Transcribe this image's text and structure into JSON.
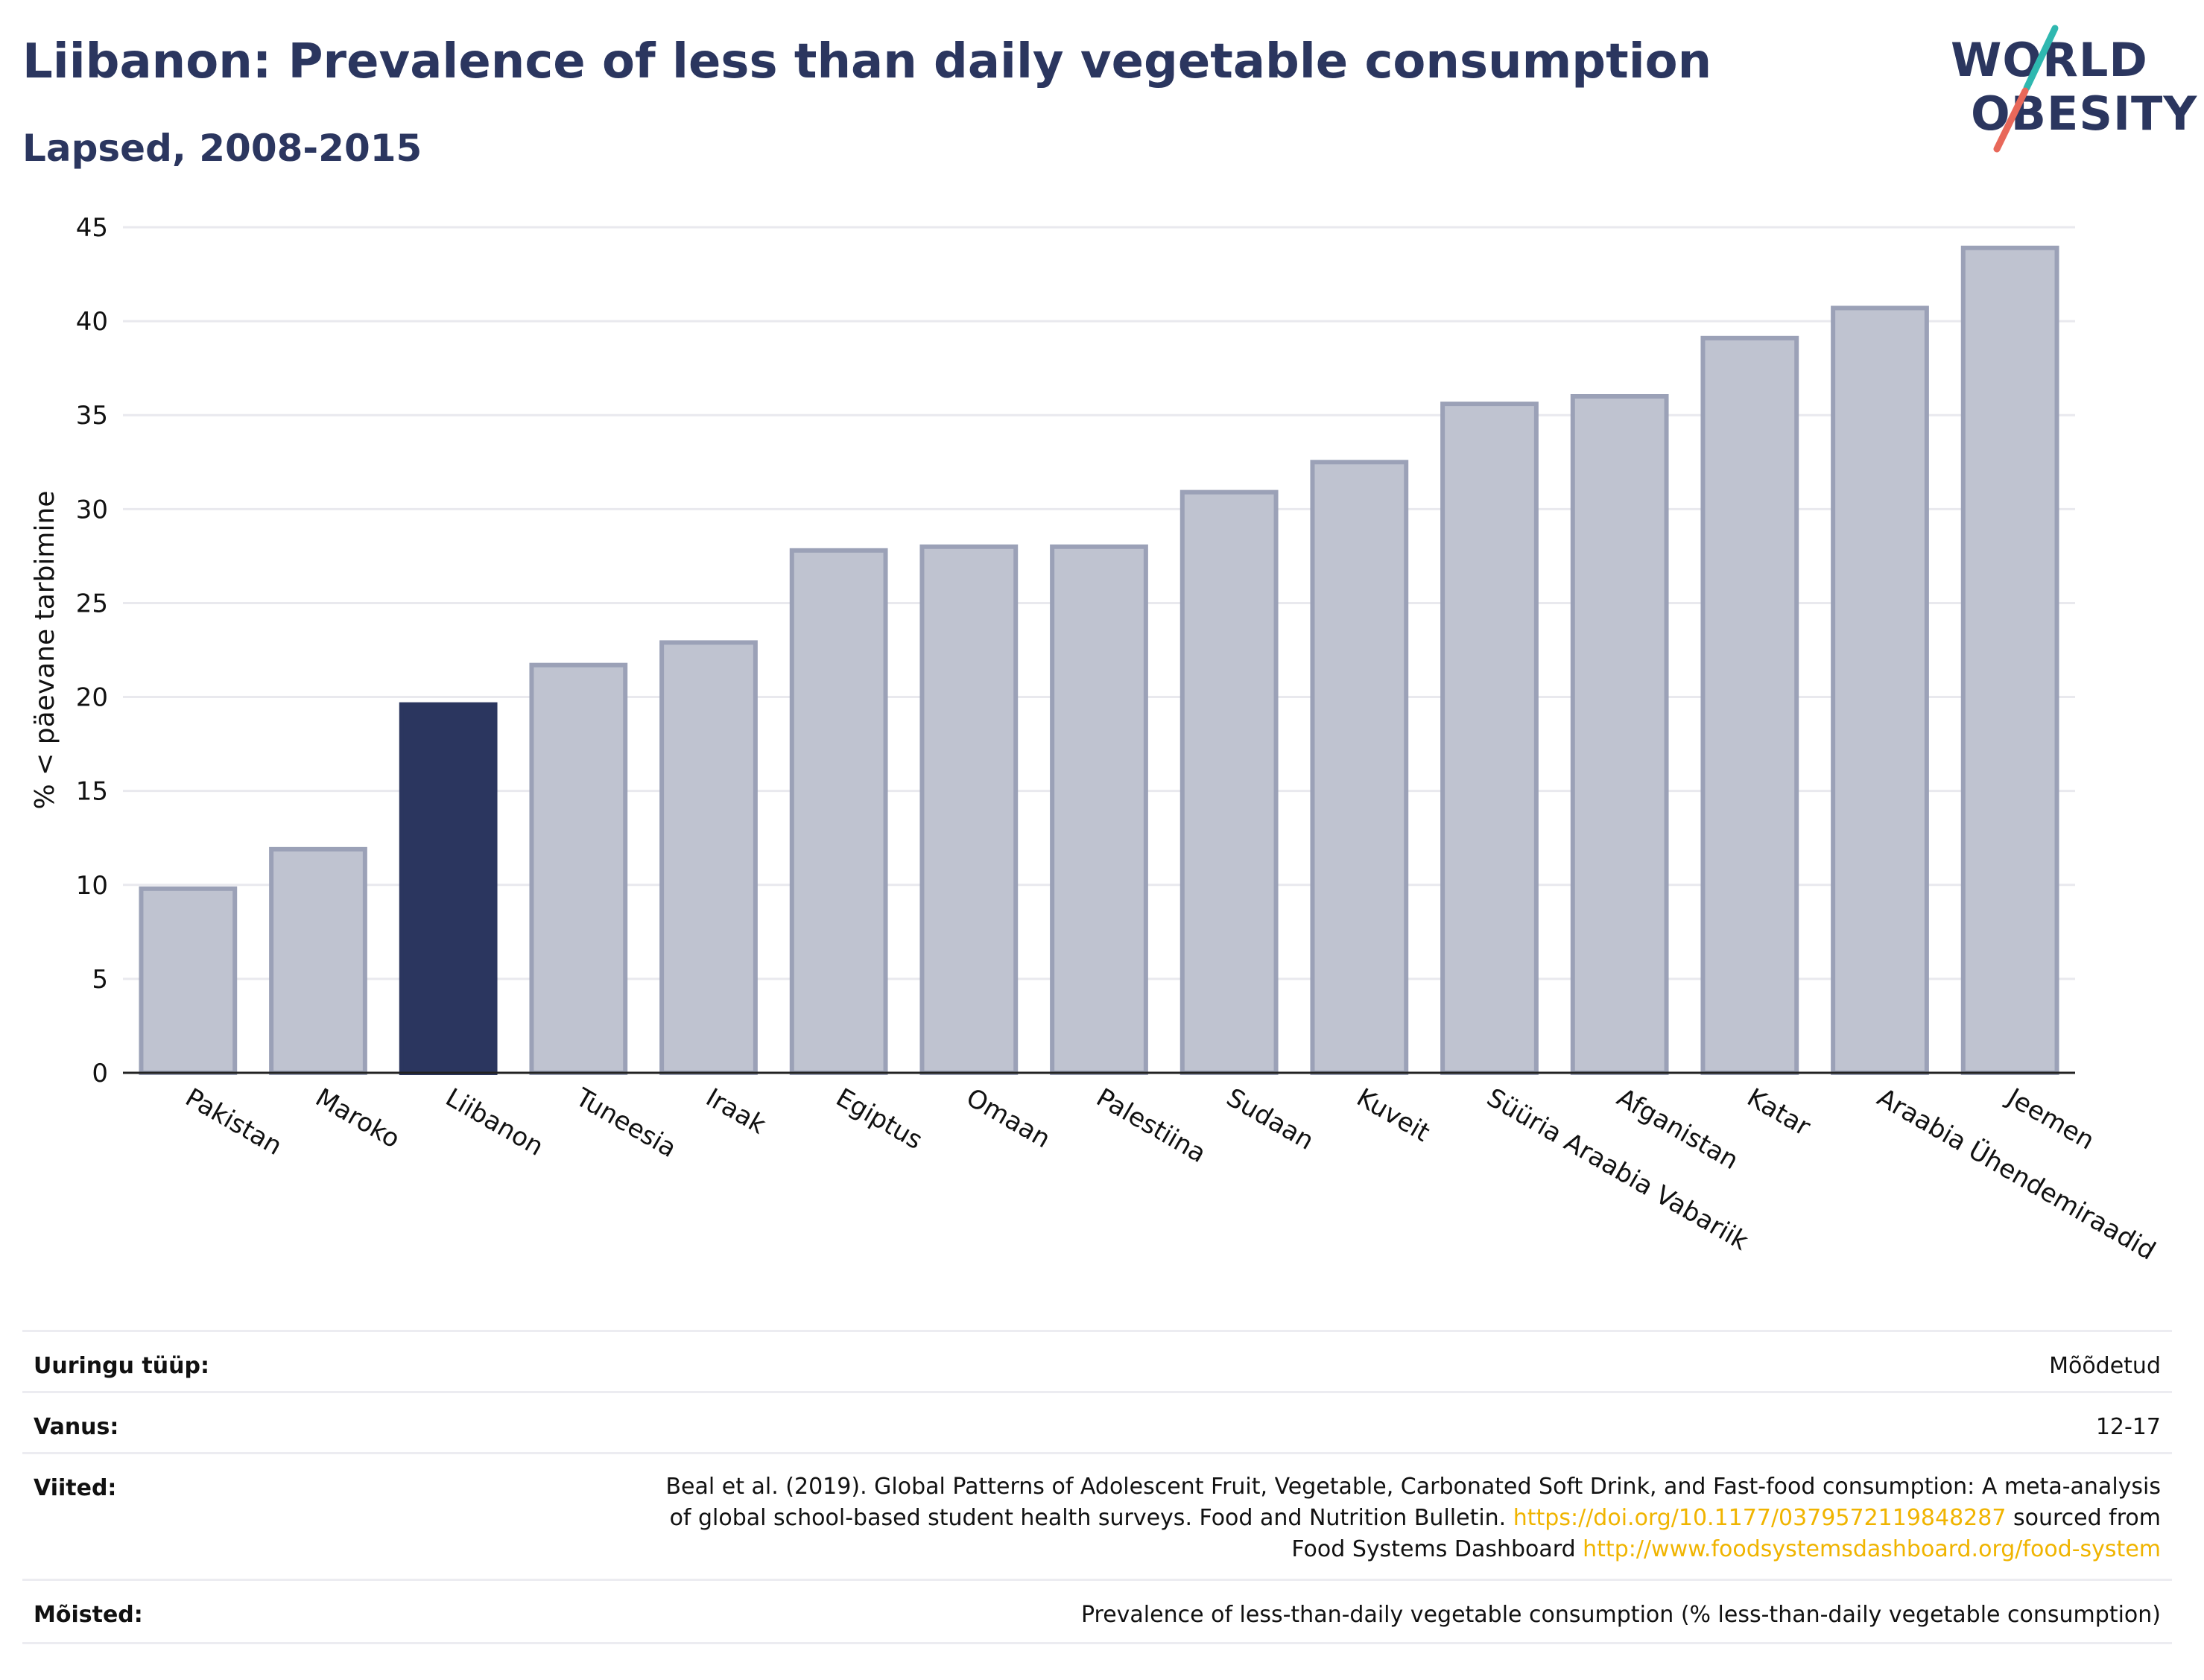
{
  "header": {
    "title": "Liibanon: Prevalence of less than daily vegetable consumption",
    "subtitle": "Lapsed, 2008-2015",
    "logo_line1": "WORLD",
    "logo_line2": "OBESITY"
  },
  "chart_data": {
    "type": "bar",
    "title": "Liibanon: Prevalence of less than daily vegetable consumption",
    "subtitle": "Lapsed, 2008-2015",
    "xlabel": "",
    "ylabel": "% < päevane tarbimine",
    "ylim": [
      0,
      45
    ],
    "yticks": [
      0,
      5,
      10,
      15,
      20,
      25,
      30,
      35,
      40,
      45
    ],
    "grid": true,
    "highlight": "Liibanon",
    "colors": {
      "highlight": "#2b365f",
      "bar": "#bfc3d0",
      "bar_border": "#9ba1b7",
      "grid": "#e9e9ee"
    },
    "categories": [
      "Pakistan",
      "Maroko",
      "Liibanon",
      "Tuneesia",
      "Iraak",
      "Egiptus",
      "Omaan",
      "Palestiina",
      "Sudaan",
      "Kuveit",
      "Süüria Araabia Vabariik",
      "Afganistan",
      "Katar",
      "Araabia Ühendemiraadid",
      "Jeemen"
    ],
    "values": [
      9.8,
      11.9,
      19.6,
      21.7,
      22.9,
      27.8,
      28.0,
      28.0,
      30.9,
      32.5,
      35.6,
      36.0,
      39.1,
      40.7,
      43.9
    ]
  },
  "meta": {
    "rows": [
      {
        "label": "Uuringu tüüp:",
        "value": "Mõõdetud"
      },
      {
        "label": "Vanus:",
        "value": "12-17"
      },
      {
        "label": "Viited:",
        "value_line1": "Beal et al. (2019). Global Patterns of Adolescent Fruit, Vegetable, Carbonated Soft Drink, and Fast-food consumption: A meta-analysis",
        "value_line2_pre": "of global school-based student health surveys. Food and Nutrition Bulletin. ",
        "value_link1": "https://doi.org/10.1177/0379572119848287",
        "value_line2_post": " sourced from",
        "value_line3_pre": "Food Systems Dashboard ",
        "value_link2": "http://www.foodsystemsdashboard.org/food-system"
      },
      {
        "label": "Mõisted:",
        "value": "Prevalence of less-than-daily vegetable consumption (% less-than-daily vegetable consumption)"
      }
    ]
  }
}
